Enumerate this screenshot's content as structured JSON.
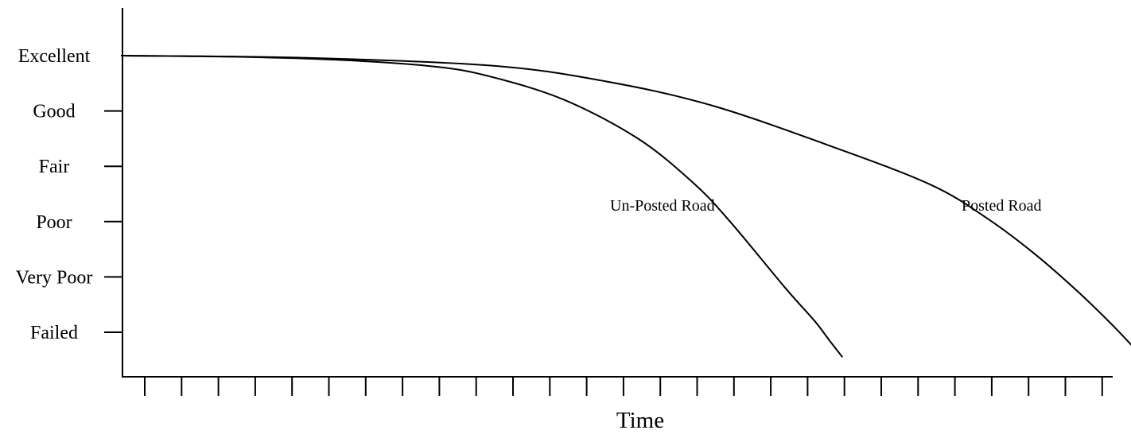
{
  "chart_data": {
    "type": "line",
    "title": "",
    "xlabel": "Time",
    "ylabel": "",
    "y_categories": [
      "Excellent",
      "Good",
      "Fair",
      "Poor",
      "Very Poor",
      "Failed"
    ],
    "x_tick_count": 27,
    "grid": false,
    "legend": "none",
    "series": [
      {
        "name": "Un-Posted Road",
        "points": [
          [
            0.0,
            0.0
          ],
          [
            3.0,
            0.02
          ],
          [
            6.0,
            0.08
          ],
          [
            8.5,
            0.2
          ],
          [
            10.0,
            0.38
          ],
          [
            12.0,
            0.8
          ],
          [
            14.0,
            1.5
          ],
          [
            15.5,
            2.3
          ],
          [
            16.5,
            3.0
          ],
          [
            18.0,
            4.2
          ],
          [
            18.8,
            4.8
          ],
          [
            19.2,
            5.15
          ],
          [
            19.55,
            5.45
          ]
        ]
      },
      {
        "name": "Posted Road",
        "points": [
          [
            0.0,
            0.0
          ],
          [
            5.0,
            0.04
          ],
          [
            10.0,
            0.18
          ],
          [
            13.0,
            0.45
          ],
          [
            16.0,
            0.9
          ],
          [
            19.5,
            1.7
          ],
          [
            22.0,
            2.35
          ],
          [
            23.5,
            2.95
          ],
          [
            24.8,
            3.6
          ],
          [
            26.0,
            4.3
          ],
          [
            27.0,
            4.95
          ],
          [
            27.7,
            5.45
          ]
        ]
      }
    ],
    "series_labels": [
      "Un-Posted Road",
      "Posted Road"
    ]
  }
}
